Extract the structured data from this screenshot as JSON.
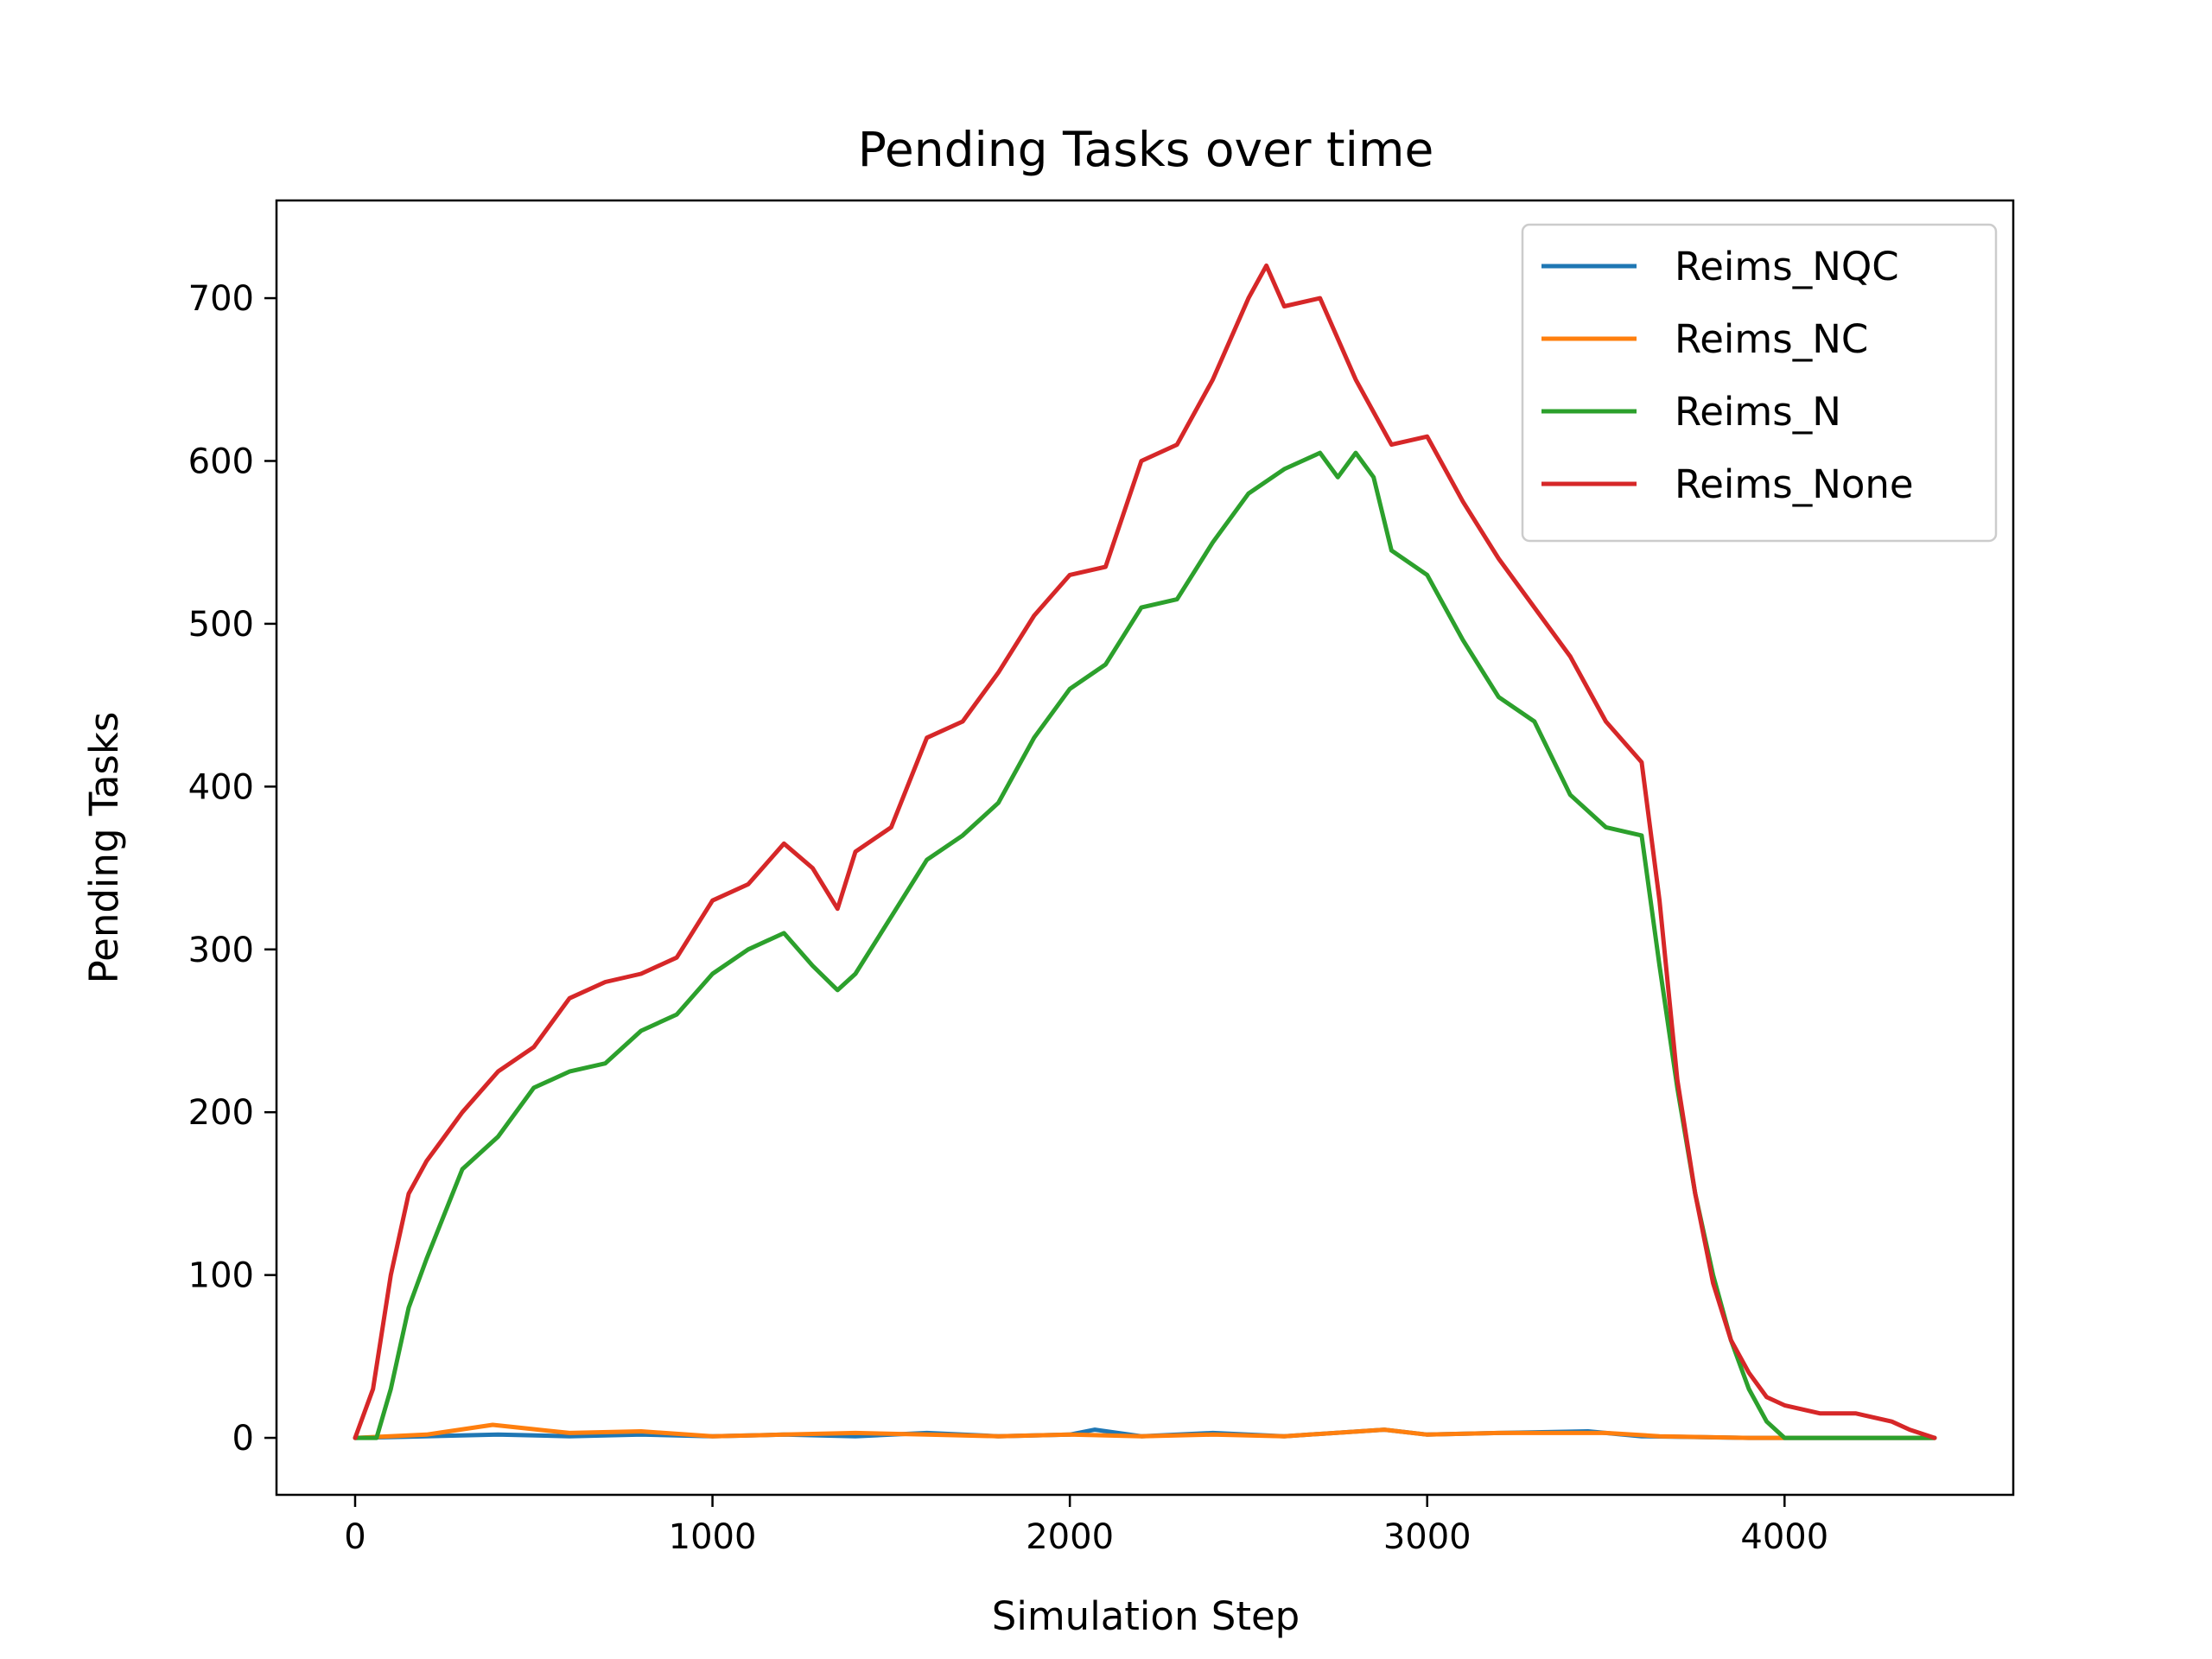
{
  "chart_data": {
    "type": "line",
    "title": "Pending Tasks over time",
    "xlabel": "Simulation Step",
    "ylabel": "Pending Tasks",
    "xlim": [
      -220,
      4640
    ],
    "ylim": [
      -35,
      760
    ],
    "xticks": [
      0,
      1000,
      2000,
      3000,
      4000
    ],
    "yticks": [
      0,
      100,
      200,
      300,
      400,
      500,
      600,
      700
    ],
    "xtick_labels": [
      "0",
      "1000",
      "2000",
      "3000",
      "4000"
    ],
    "ytick_labels": [
      "0",
      "100",
      "200",
      "300",
      "400",
      "500",
      "600",
      "700"
    ],
    "grid": false,
    "legend_position": "top-right",
    "series": [
      {
        "name": "Reims_NQC",
        "color": "#1f77b4",
        "x": [
          0,
          200,
          400,
          600,
          800,
          1000,
          1200,
          1400,
          1600,
          1800,
          2000,
          2070,
          2200,
          2400,
          2600,
          2880,
          3000,
          3200,
          3450,
          3600,
          3900,
          4420
        ],
        "y": [
          0,
          1,
          2,
          1,
          2,
          1,
          2,
          1,
          3,
          1,
          2,
          5,
          1,
          3,
          1,
          5,
          2,
          3,
          4,
          1,
          0,
          0
        ]
      },
      {
        "name": "Reims_NC",
        "color": "#ff7f0e",
        "x": [
          0,
          200,
          385,
          600,
          800,
          1000,
          1200,
          1400,
          1600,
          1800,
          2000,
          2200,
          2400,
          2600,
          2880,
          3000,
          3200,
          3500,
          3650,
          3900,
          4420
        ],
        "y": [
          0,
          2,
          8,
          3,
          4,
          1,
          2,
          3,
          2,
          1,
          2,
          1,
          2,
          1,
          5,
          2,
          3,
          3,
          1,
          0,
          0
        ]
      },
      {
        "name": "Reims_N",
        "color": "#2ca02c",
        "x": [
          0,
          60,
          100,
          150,
          200,
          300,
          400,
          500,
          600,
          700,
          800,
          900,
          1000,
          1100,
          1200,
          1280,
          1350,
          1400,
          1500,
          1600,
          1700,
          1800,
          1900,
          2000,
          2100,
          2200,
          2300,
          2400,
          2500,
          2600,
          2700,
          2750,
          2800,
          2850,
          2900,
          3000,
          3100,
          3200,
          3300,
          3400,
          3500,
          3600,
          3650,
          3700,
          3750,
          3800,
          3850,
          3900,
          3950,
          4000,
          4100,
          4200,
          4300,
          4420
        ],
        "y": [
          0,
          0,
          30,
          80,
          110,
          165,
          185,
          215,
          225,
          230,
          250,
          260,
          285,
          300,
          310,
          290,
          275,
          285,
          320,
          355,
          370,
          390,
          430,
          460,
          475,
          510,
          515,
          550,
          580,
          595,
          605,
          590,
          605,
          590,
          545,
          530,
          490,
          455,
          440,
          395,
          375,
          370,
          290,
          215,
          150,
          100,
          60,
          30,
          10,
          0,
          0,
          0,
          0,
          0
        ]
      },
      {
        "name": "Reims_None",
        "color": "#d62728",
        "x": [
          0,
          50,
          100,
          150,
          200,
          250,
          300,
          400,
          500,
          600,
          700,
          800,
          900,
          1000,
          1100,
          1200,
          1280,
          1350,
          1400,
          1500,
          1600,
          1700,
          1800,
          1900,
          2000,
          2100,
          2200,
          2300,
          2400,
          2500,
          2550,
          2600,
          2700,
          2800,
          2900,
          3000,
          3100,
          3200,
          3300,
          3400,
          3500,
          3600,
          3650,
          3700,
          3750,
          3800,
          3850,
          3900,
          3950,
          4000,
          4100,
          4200,
          4300,
          4350,
          4420
        ],
        "y": [
          0,
          30,
          100,
          150,
          170,
          185,
          200,
          225,
          240,
          270,
          280,
          285,
          295,
          330,
          340,
          365,
          350,
          325,
          360,
          375,
          430,
          440,
          470,
          505,
          530,
          535,
          600,
          610,
          650,
          700,
          720,
          695,
          700,
          650,
          610,
          615,
          575,
          540,
          510,
          480,
          440,
          415,
          330,
          220,
          150,
          95,
          60,
          40,
          25,
          20,
          15,
          15,
          10,
          5,
          0
        ]
      }
    ]
  }
}
